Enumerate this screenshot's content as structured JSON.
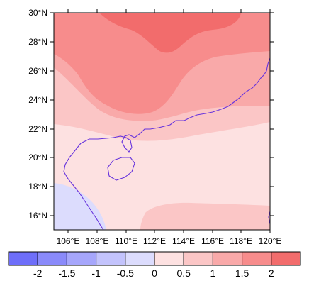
{
  "map": {
    "lat_labels": [
      "30°N",
      "28°N",
      "26°N",
      "24°N",
      "22°N",
      "20°N",
      "18°N",
      "16°N"
    ],
    "lon_labels": [
      "106°E",
      "108°E",
      "110°E",
      "112°E",
      "114°E",
      "116°E",
      "118°E",
      "120°E"
    ],
    "extent": {
      "lon_min": 105,
      "lon_max": 120,
      "lat_min": 15,
      "lat_max": 30
    },
    "coastline_color": "#6633dd",
    "frame_color": "#000000"
  },
  "colorbar": {
    "tick_labels": [
      "-2",
      "-1.5",
      "-1",
      "-0.5",
      "0",
      "0.5",
      "1",
      "1.5",
      "2"
    ],
    "colors": [
      "#6e6ef9",
      "#8a8afa",
      "#a6a6fb",
      "#c3c3fc",
      "#dcdcfd",
      "#fde1e1",
      "#fbc6c6",
      "#f9a9a9",
      "#f78c8c",
      "#f26c6c"
    ]
  },
  "field_colors": {
    "band_lt0": "#dcdcfd",
    "band_0_05": "#fde1e1",
    "band_05_1": "#fbc6c6",
    "band_1_15": "#f9a9a9",
    "band_15_2": "#f78c8c",
    "band_gt2": "#f26c6c"
  }
}
